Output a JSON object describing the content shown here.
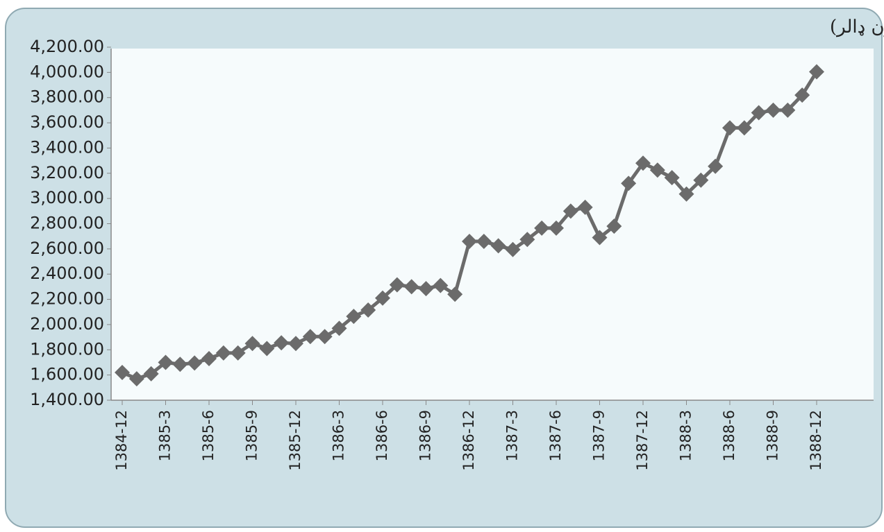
{
  "chart_data": {
    "type": "line",
    "title": "د افغانستان ناخالصه اسعاري زيرمې(ارقام په مليون ډالر)",
    "categories": [
      "1384-12",
      null,
      null,
      "1385-3",
      null,
      null,
      "1385-6",
      null,
      null,
      "1385-9",
      null,
      null,
      "1385-12",
      null,
      null,
      "1386-3",
      null,
      null,
      "1386-6",
      null,
      null,
      "1386-9",
      null,
      null,
      "1386-12",
      null,
      null,
      "1387-3",
      null,
      null,
      "1387-6",
      null,
      null,
      "1387-9",
      null,
      null,
      "1387-12",
      null,
      null,
      "1388-3",
      null,
      null,
      "1388-6",
      null,
      null,
      "1388-9",
      null,
      null,
      "1388-12"
    ],
    "values": [
      1620,
      1570,
      1610,
      1700,
      1685,
      1695,
      1730,
      1775,
      1775,
      1850,
      1810,
      1855,
      1850,
      1905,
      1905,
      1970,
      2065,
      2115,
      2210,
      2315,
      2300,
      2285,
      2310,
      2240,
      2660,
      2660,
      2625,
      2595,
      2675,
      2765,
      2765,
      2900,
      2930,
      2690,
      2780,
      3120,
      3280,
      3225,
      3165,
      3035,
      3145,
      3255,
      3560,
      3560,
      3680,
      3700,
      3700,
      3820,
      4005
    ],
    "color": "#6b6b6b",
    "ylim": [
      1400,
      4200
    ],
    "yticks": [
      {
        "value": 1400,
        "label": "1,400.00"
      },
      {
        "value": 1600,
        "label": "1,600.00"
      },
      {
        "value": 1800,
        "label": "1,800.00"
      },
      {
        "value": 2000,
        "label": "2,000.00"
      },
      {
        "value": 2200,
        "label": "2,200.00"
      },
      {
        "value": 2400,
        "label": "2,400.00"
      },
      {
        "value": 2600,
        "label": "2,600.00"
      },
      {
        "value": 2800,
        "label": "2,800.00"
      },
      {
        "value": 3000,
        "label": "3,000.00"
      },
      {
        "value": 3200,
        "label": "3,200.00"
      },
      {
        "value": 3400,
        "label": "3,400.00"
      },
      {
        "value": 3600,
        "label": "3,600.00"
      },
      {
        "value": 3800,
        "label": "3,800.00"
      },
      {
        "value": 4000,
        "label": "4,000.00"
      },
      {
        "value": 4200,
        "label": "4,200.00"
      }
    ],
    "grid": false
  }
}
